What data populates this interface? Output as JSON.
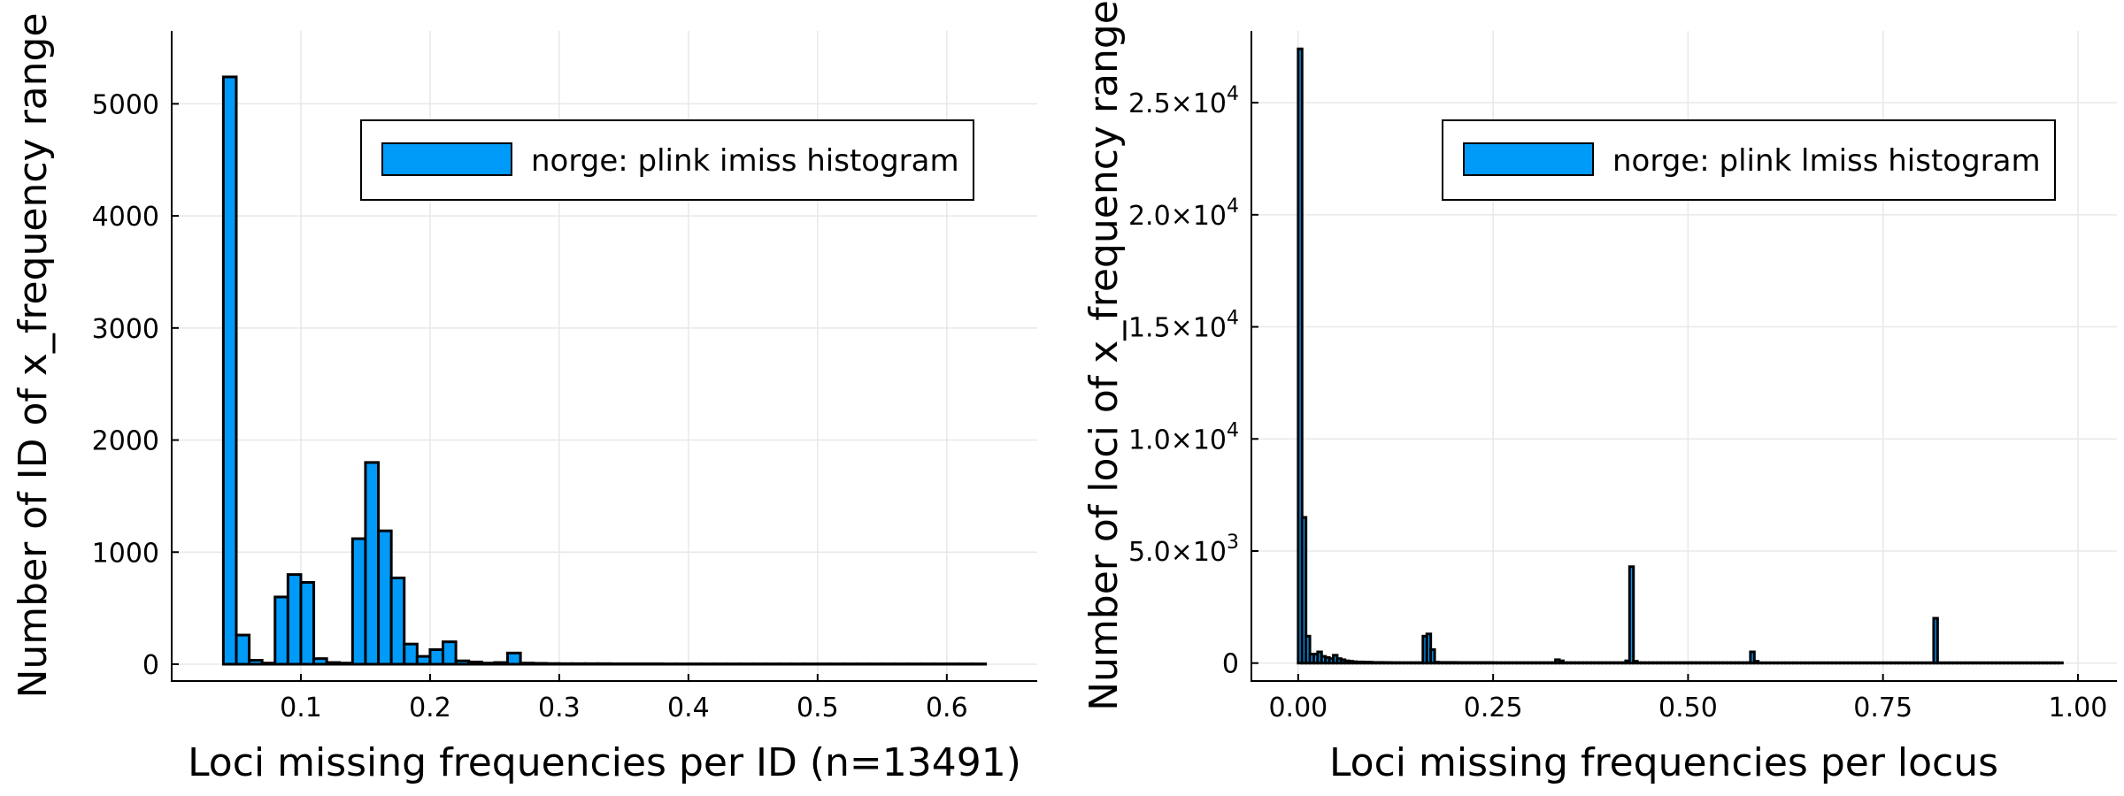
{
  "chart_data": [
    {
      "type": "bar",
      "title": "",
      "xlabel": "Loci missing frequencies per ID (n=13491)",
      "ylabel": "Number of ID of x_frequency range",
      "xlim": [
        0.0,
        0.67
      ],
      "ylim": [
        -150,
        5650
      ],
      "xticks": [
        {
          "value": 0.1,
          "label": "0.1"
        },
        {
          "value": 0.2,
          "label": "0.2"
        },
        {
          "value": 0.3,
          "label": "0.3"
        },
        {
          "value": 0.4,
          "label": "0.4"
        },
        {
          "value": 0.5,
          "label": "0.5"
        },
        {
          "value": 0.6,
          "label": "0.6"
        }
      ],
      "yticks": [
        {
          "value": 0,
          "label": "0"
        },
        {
          "value": 1000,
          "label": "1000"
        },
        {
          "value": 2000,
          "label": "2000"
        },
        {
          "value": 3000,
          "label": "3000"
        },
        {
          "value": 4000,
          "label": "4000"
        },
        {
          "value": 5000,
          "label": "5000"
        }
      ],
      "legend": {
        "label": "norge: plink imiss histogram",
        "placement": "top-right"
      },
      "grid": true,
      "bin_start": 0.04,
      "bin_width": 0.01,
      "series": [
        {
          "name": "norge: plink imiss histogram",
          "color": "#009AF9",
          "values": [
            5240,
            260,
            35,
            10,
            600,
            800,
            730,
            50,
            15,
            10,
            1120,
            1800,
            1190,
            770,
            180,
            70,
            130,
            200,
            30,
            20,
            10,
            15,
            100,
            10,
            8,
            6,
            5,
            5,
            5,
            5,
            4,
            4,
            4,
            4,
            3,
            3,
            3,
            3,
            3,
            3,
            3,
            3,
            3,
            3,
            3,
            3,
            3,
            3,
            3,
            3,
            3,
            3,
            3,
            3,
            3,
            3,
            3,
            3,
            3
          ]
        }
      ]
    },
    {
      "type": "bar",
      "title": "",
      "xlabel": "Loci missing frequencies per locus",
      "ylabel": "Number of loci of x_frequency range",
      "xlim": [
        -0.06,
        1.05
      ],
      "ylim": [
        -800,
        28200
      ],
      "xticks": [
        {
          "value": 0.0,
          "label": "0.00"
        },
        {
          "value": 0.25,
          "label": "0.25"
        },
        {
          "value": 0.5,
          "label": "0.50"
        },
        {
          "value": 0.75,
          "label": "0.75"
        },
        {
          "value": 1.0,
          "label": "1.00"
        }
      ],
      "yticks": [
        {
          "value": 0,
          "label": "0",
          "exp": ""
        },
        {
          "value": 5000,
          "label": "5.0×10",
          "exp": "3"
        },
        {
          "value": 10000,
          "label": "1.0×10",
          "exp": "4"
        },
        {
          "value": 15000,
          "label": "1.5×10",
          "exp": "4"
        },
        {
          "value": 20000,
          "label": "2.0×10",
          "exp": "4"
        },
        {
          "value": 25000,
          "label": "2.5×10",
          "exp": "4"
        }
      ],
      "legend": {
        "label": "norge: plink lmiss histogram",
        "placement": "top-right"
      },
      "grid": true,
      "bin_start": 0.0,
      "bin_width": 0.005,
      "series": [
        {
          "name": "norge: plink lmiss histogram",
          "color": "#009AF9",
          "values": [
            27400,
            6500,
            1200,
            400,
            400,
            500,
            300,
            250,
            200,
            350,
            200,
            150,
            100,
            80,
            60,
            50,
            50,
            40,
            40,
            30,
            30,
            30,
            25,
            25,
            20,
            20,
            20,
            20,
            20,
            20,
            20,
            20,
            1200,
            1300,
            600,
            40,
            30,
            30,
            30,
            30,
            30,
            25,
            25,
            25,
            25,
            25,
            25,
            25,
            25,
            25,
            20,
            20,
            20,
            20,
            20,
            20,
            20,
            20,
            20,
            20,
            20,
            20,
            20,
            20,
            20,
            20,
            150,
            100,
            20,
            20,
            20,
            20,
            20,
            20,
            20,
            20,
            20,
            20,
            20,
            20,
            20,
            20,
            20,
            20,
            100,
            4300,
            80,
            20,
            20,
            20,
            20,
            20,
            20,
            20,
            20,
            20,
            20,
            20,
            20,
            20,
            20,
            20,
            20,
            20,
            20,
            20,
            20,
            20,
            20,
            20,
            20,
            20,
            20,
            20,
            20,
            20,
            500,
            80,
            15,
            15,
            15,
            15,
            15,
            15,
            15,
            15,
            15,
            15,
            15,
            15,
            15,
            15,
            15,
            15,
            15,
            15,
            15,
            15,
            15,
            15,
            15,
            15,
            15,
            15,
            15,
            15,
            15,
            15,
            15,
            15,
            15,
            15,
            15,
            15,
            15,
            15,
            15,
            15,
            15,
            15,
            15,
            15,
            15,
            2000,
            15,
            15,
            15,
            15,
            15,
            15,
            15,
            15,
            15,
            15,
            15,
            15,
            15,
            15,
            15,
            15,
            15,
            15,
            15,
            15,
            15,
            15,
            15,
            15,
            15,
            15,
            15,
            15,
            15,
            15,
            15,
            15
          ]
        }
      ]
    }
  ]
}
